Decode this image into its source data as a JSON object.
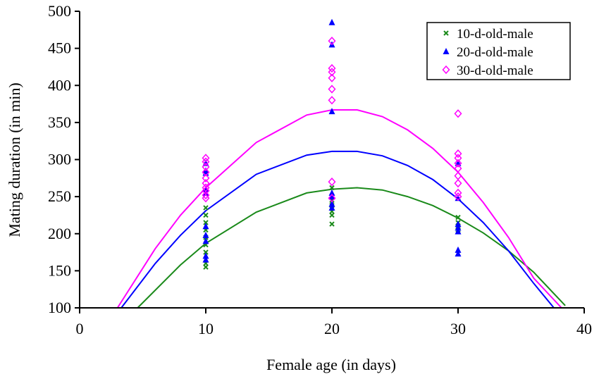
{
  "chart_data": {
    "type": "scatter",
    "title": "",
    "xlabel": "Female age (in days)",
    "ylabel": "Mating duration (in min)",
    "xlim": [
      0,
      40
    ],
    "ylim": [
      100,
      500
    ],
    "x_ticks": [
      "0",
      "10",
      "20",
      "30",
      "40"
    ],
    "y_ticks": [
      "100",
      "150",
      "200",
      "250",
      "300",
      "350",
      "400",
      "450",
      "500"
    ],
    "grid": false,
    "legend_position": "top-right",
    "series": [
      {
        "name": "10-d-old-male",
        "color": "#1a8a1a",
        "marker": "x",
        "points": [
          [
            10,
            155
          ],
          [
            10,
            160
          ],
          [
            10,
            175
          ],
          [
            10,
            185
          ],
          [
            10,
            195
          ],
          [
            10,
            205
          ],
          [
            10,
            215
          ],
          [
            10,
            225
          ],
          [
            10,
            235
          ],
          [
            20,
            213
          ],
          [
            20,
            225
          ],
          [
            20,
            230
          ],
          [
            20,
            238
          ],
          [
            20,
            245
          ],
          [
            20,
            262
          ],
          [
            30,
            205
          ],
          [
            30,
            210
          ],
          [
            30,
            215
          ],
          [
            30,
            222
          ]
        ],
        "fit_curve": [
          [
            4.6,
            100
          ],
          [
            8,
            158
          ],
          [
            10,
            187
          ],
          [
            14,
            229
          ],
          [
            18,
            255
          ],
          [
            20,
            260
          ],
          [
            22,
            262
          ],
          [
            24,
            259
          ],
          [
            26,
            250
          ],
          [
            28,
            238
          ],
          [
            30,
            221
          ],
          [
            32,
            201
          ],
          [
            34,
            177
          ],
          [
            36,
            148
          ],
          [
            38.5,
            103
          ]
        ]
      },
      {
        "name": "20-d-old-male",
        "color": "#0000ff",
        "marker": "triangle",
        "points": [
          [
            10,
            165
          ],
          [
            10,
            170
          ],
          [
            10,
            190
          ],
          [
            10,
            198
          ],
          [
            10,
            210
          ],
          [
            10,
            255
          ],
          [
            10,
            260
          ],
          [
            10,
            282
          ],
          [
            10,
            285
          ],
          [
            10,
            295
          ],
          [
            20,
            235
          ],
          [
            20,
            240
          ],
          [
            20,
            250
          ],
          [
            20,
            255
          ],
          [
            20,
            365
          ],
          [
            20,
            455
          ],
          [
            20,
            485
          ],
          [
            30,
            173
          ],
          [
            30,
            178
          ],
          [
            30,
            203
          ],
          [
            30,
            208
          ],
          [
            30,
            213
          ],
          [
            30,
            248
          ],
          [
            30,
            295
          ]
        ],
        "fit_curve": [
          [
            3.3,
            100
          ],
          [
            6,
            160
          ],
          [
            8,
            198
          ],
          [
            10,
            231
          ],
          [
            14,
            280
          ],
          [
            18,
            306
          ],
          [
            20,
            311
          ],
          [
            22,
            311
          ],
          [
            24,
            305
          ],
          [
            26,
            292
          ],
          [
            28,
            273
          ],
          [
            30,
            247
          ],
          [
            32,
            215
          ],
          [
            34,
            177
          ],
          [
            36,
            133
          ],
          [
            37.6,
            100
          ]
        ]
      },
      {
        "name": "30-d-old-male",
        "color": "#ff00ff",
        "marker": "diamond",
        "points": [
          [
            10,
            248
          ],
          [
            10,
            252
          ],
          [
            10,
            258
          ],
          [
            10,
            262
          ],
          [
            10,
            268
          ],
          [
            10,
            275
          ],
          [
            10,
            283
          ],
          [
            10,
            290
          ],
          [
            10,
            297
          ],
          [
            10,
            302
          ],
          [
            20,
            248
          ],
          [
            20,
            270
          ],
          [
            20,
            380
          ],
          [
            20,
            395
          ],
          [
            20,
            410
          ],
          [
            20,
            418
          ],
          [
            20,
            423
          ],
          [
            20,
            460
          ],
          [
            30,
            250
          ],
          [
            30,
            255
          ],
          [
            30,
            268
          ],
          [
            30,
            278
          ],
          [
            30,
            288
          ],
          [
            30,
            295
          ],
          [
            30,
            302
          ],
          [
            30,
            308
          ],
          [
            30,
            362
          ]
        ],
        "fit_curve": [
          [
            3,
            100
          ],
          [
            6,
            180
          ],
          [
            8,
            225
          ],
          [
            10,
            262
          ],
          [
            14,
            323
          ],
          [
            18,
            360
          ],
          [
            20,
            367
          ],
          [
            22,
            367
          ],
          [
            24,
            358
          ],
          [
            26,
            340
          ],
          [
            28,
            315
          ],
          [
            30,
            283
          ],
          [
            32,
            242
          ],
          [
            34,
            195
          ],
          [
            36,
            140
          ],
          [
            38.2,
            100
          ]
        ]
      }
    ]
  }
}
